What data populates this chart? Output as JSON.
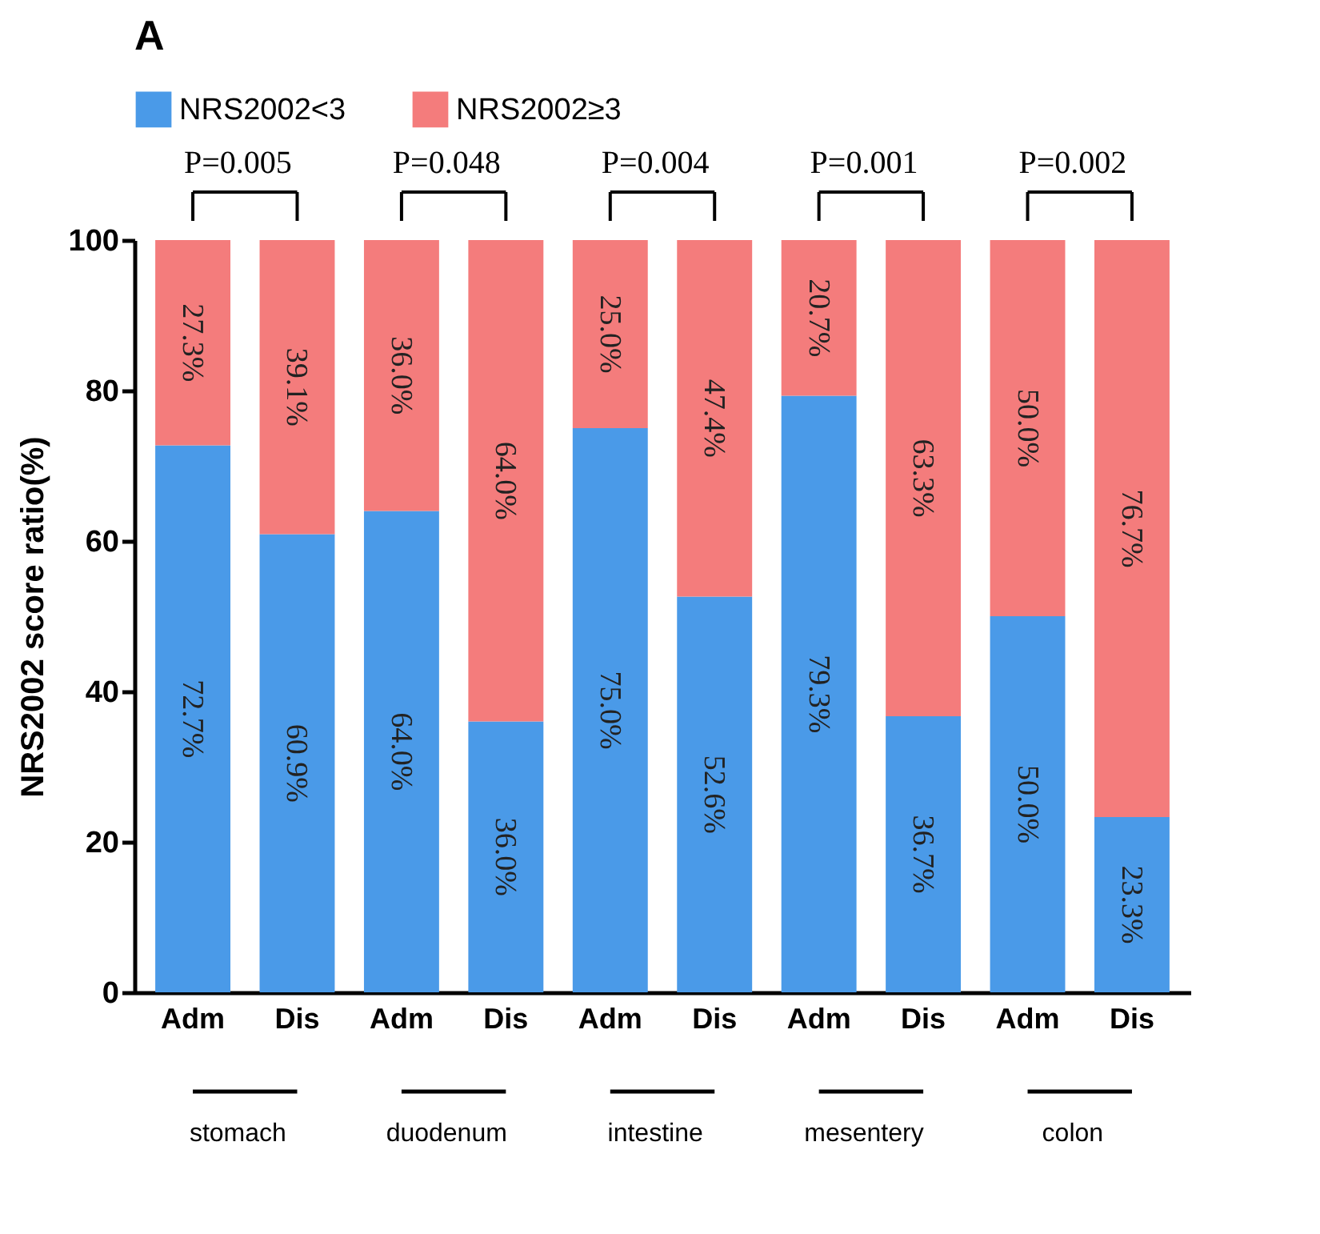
{
  "chart_data": {
    "type": "bar",
    "title": "A",
    "ylabel": "NRS2002 score ratio(%)",
    "stacked": true,
    "legend": "top",
    "categories": [
      "Adm",
      "Dis",
      "Adm",
      "Dis",
      "Adm",
      "Dis",
      "Adm",
      "Dis",
      "Adm",
      "Dis"
    ],
    "series": [
      {
        "name": "NRS2002<3",
        "color": "#4a9ae8",
        "values": [
          72.7,
          60.9,
          64.0,
          36.0,
          75.0,
          52.6,
          79.3,
          36.7,
          50.0,
          23.3
        ],
        "value_labels": [
          "72.7%",
          "60.9%",
          "64.0%",
          "36.0%",
          "75.0%",
          "52.6%",
          "79.3%",
          "36.7%",
          "50.0%",
          "23.3%"
        ]
      },
      {
        "name": "NRS2002≥3",
        "color": "#f47c7c",
        "values": [
          27.3,
          39.1,
          36.0,
          64.0,
          25.0,
          47.4,
          20.7,
          63.3,
          50.0,
          76.7
        ],
        "value_labels": [
          "27.3%",
          "39.1%",
          "36.0%",
          "64.0%",
          "25.0%",
          "47.4%",
          "20.7%",
          "63.3%",
          "50.0%",
          "76.7%"
        ]
      }
    ],
    "ylim": [
      0,
      100
    ],
    "yticks": [
      0,
      20,
      40,
      60,
      80,
      100
    ],
    "annotations": [
      "P=0.005",
      "P=0.048",
      "P=0.004",
      "P=0.001",
      "P=0.002",
      "stomach",
      "duodenum",
      "intestine",
      "mesentery",
      "colon"
    ]
  }
}
